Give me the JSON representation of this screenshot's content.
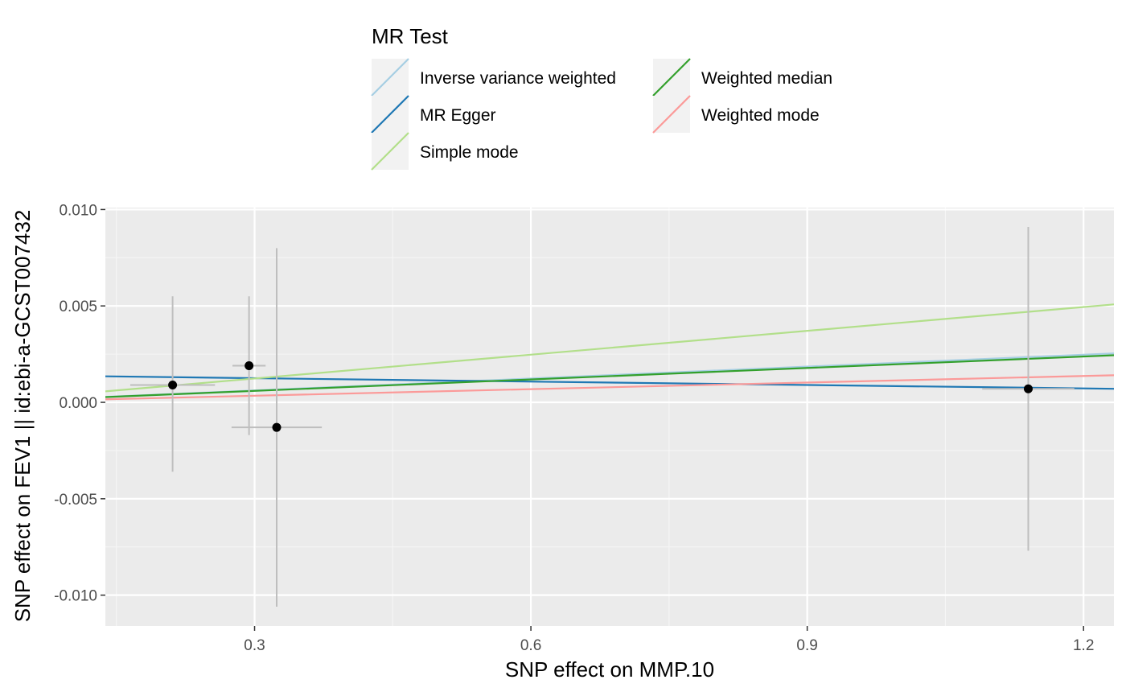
{
  "chart_data": {
    "type": "scatter",
    "xlabel": "SNP effect on MMP.10",
    "ylabel": "SNP effect on FEV1 || id:ebi-a-GCST007432",
    "xlim": [
      0.138,
      1.233
    ],
    "ylim": [
      -0.0116,
      0.0101
    ],
    "x_ticks": [
      0.3,
      0.6,
      0.9,
      1.2
    ],
    "x_tick_labels": [
      "0.3",
      "0.6",
      "0.9",
      "1.2"
    ],
    "y_ticks": [
      -0.01,
      -0.005,
      0.0,
      0.005,
      0.01
    ],
    "y_tick_labels": [
      "-0.010",
      "-0.005",
      "0.000",
      "0.005",
      "0.010"
    ],
    "grid": true,
    "legend": {
      "title": "MR Test",
      "position": "top",
      "entries": [
        {
          "label": "Inverse variance weighted",
          "color": "#A6CEE3"
        },
        {
          "label": "MR Egger",
          "color": "#1F78B4"
        },
        {
          "label": "Simple mode",
          "color": "#B2DF8A"
        },
        {
          "label": "Weighted median",
          "color": "#33A02C"
        },
        {
          "label": "Weighted mode",
          "color": "#FB9A99"
        }
      ]
    },
    "points": [
      {
        "x": 0.211,
        "y": 0.0009,
        "x_lo": 0.165,
        "x_hi": 0.257,
        "y_lo": -0.0036,
        "y_hi": 0.0055
      },
      {
        "x": 0.294,
        "y": 0.0019,
        "x_lo": 0.276,
        "x_hi": 0.312,
        "y_lo": -0.0017,
        "y_hi": 0.0055
      },
      {
        "x": 0.324,
        "y": -0.0013,
        "x_lo": 0.275,
        "x_hi": 0.373,
        "y_lo": -0.0106,
        "y_hi": 0.008
      },
      {
        "x": 1.14,
        "y": 0.0007,
        "x_lo": 1.09,
        "x_hi": 1.19,
        "y_lo": -0.0077,
        "y_hi": 0.0091
      }
    ],
    "lines": [
      {
        "name": "Inverse variance weighted",
        "color": "#A6CEE3",
        "intercept": 0.0,
        "slope": 0.00206
      },
      {
        "name": "MR Egger",
        "color": "#1F78B4",
        "intercept": 0.00143,
        "slope": -0.00059
      },
      {
        "name": "Simple mode",
        "color": "#B2DF8A",
        "intercept": 0.0,
        "slope": 0.00412
      },
      {
        "name": "Weighted median",
        "color": "#33A02C",
        "intercept": 0.0,
        "slope": 0.00198
      },
      {
        "name": "Weighted mode",
        "color": "#FB9A99",
        "intercept": 0.0,
        "slope": 0.00114
      }
    ],
    "colors": {
      "panel": "#EBEBEB",
      "grid_major": "#FFFFFF",
      "grid_minor": "#F6F6F6",
      "errorbar": "#BEBEBE",
      "point": "#000000",
      "legend_key_bg": "#F2F2F2"
    }
  }
}
